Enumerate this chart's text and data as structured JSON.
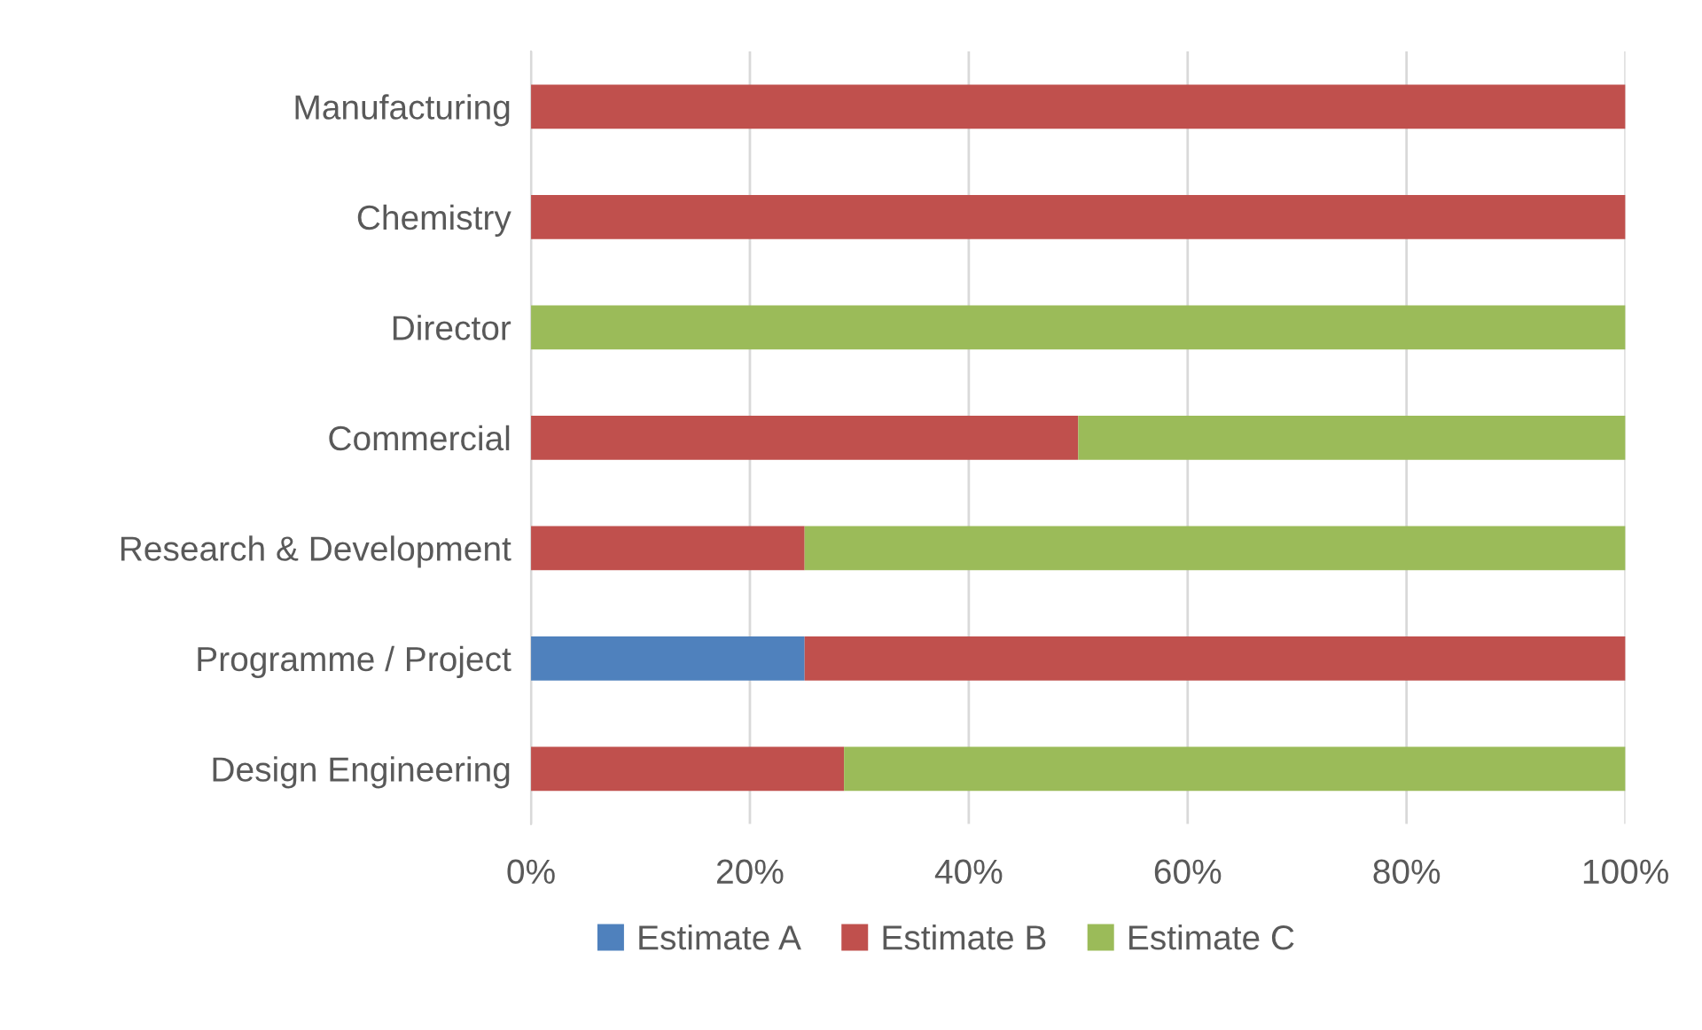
{
  "chart_data": {
    "type": "bar",
    "orientation": "horizontal",
    "stacked": true,
    "categories": [
      "Manufacturing",
      "Chemistry",
      "Director",
      "Commercial",
      "Research & Development",
      "Programme / Project",
      "Design Engineering"
    ],
    "series": [
      {
        "name": "Estimate A",
        "color": "#4f81bd",
        "values": [
          0,
          0,
          0,
          0,
          0,
          25,
          0
        ]
      },
      {
        "name": "Estimate B",
        "color": "#c0504d",
        "values": [
          100,
          100,
          0,
          50,
          25,
          75,
          28.6
        ]
      },
      {
        "name": "Estimate C",
        "color": "#9bbb59",
        "values": [
          0,
          0,
          100,
          50,
          75,
          0,
          71.4
        ]
      }
    ],
    "xlim": [
      0,
      100
    ],
    "xticks": [
      {
        "value": 0,
        "label": "0%"
      },
      {
        "value": 20,
        "label": "20%"
      },
      {
        "value": 40,
        "label": "40%"
      },
      {
        "value": 60,
        "label": "60%"
      },
      {
        "value": 80,
        "label": "80%"
      },
      {
        "value": 100,
        "label": "100%"
      }
    ],
    "grid": "x",
    "legend": "bottom"
  }
}
